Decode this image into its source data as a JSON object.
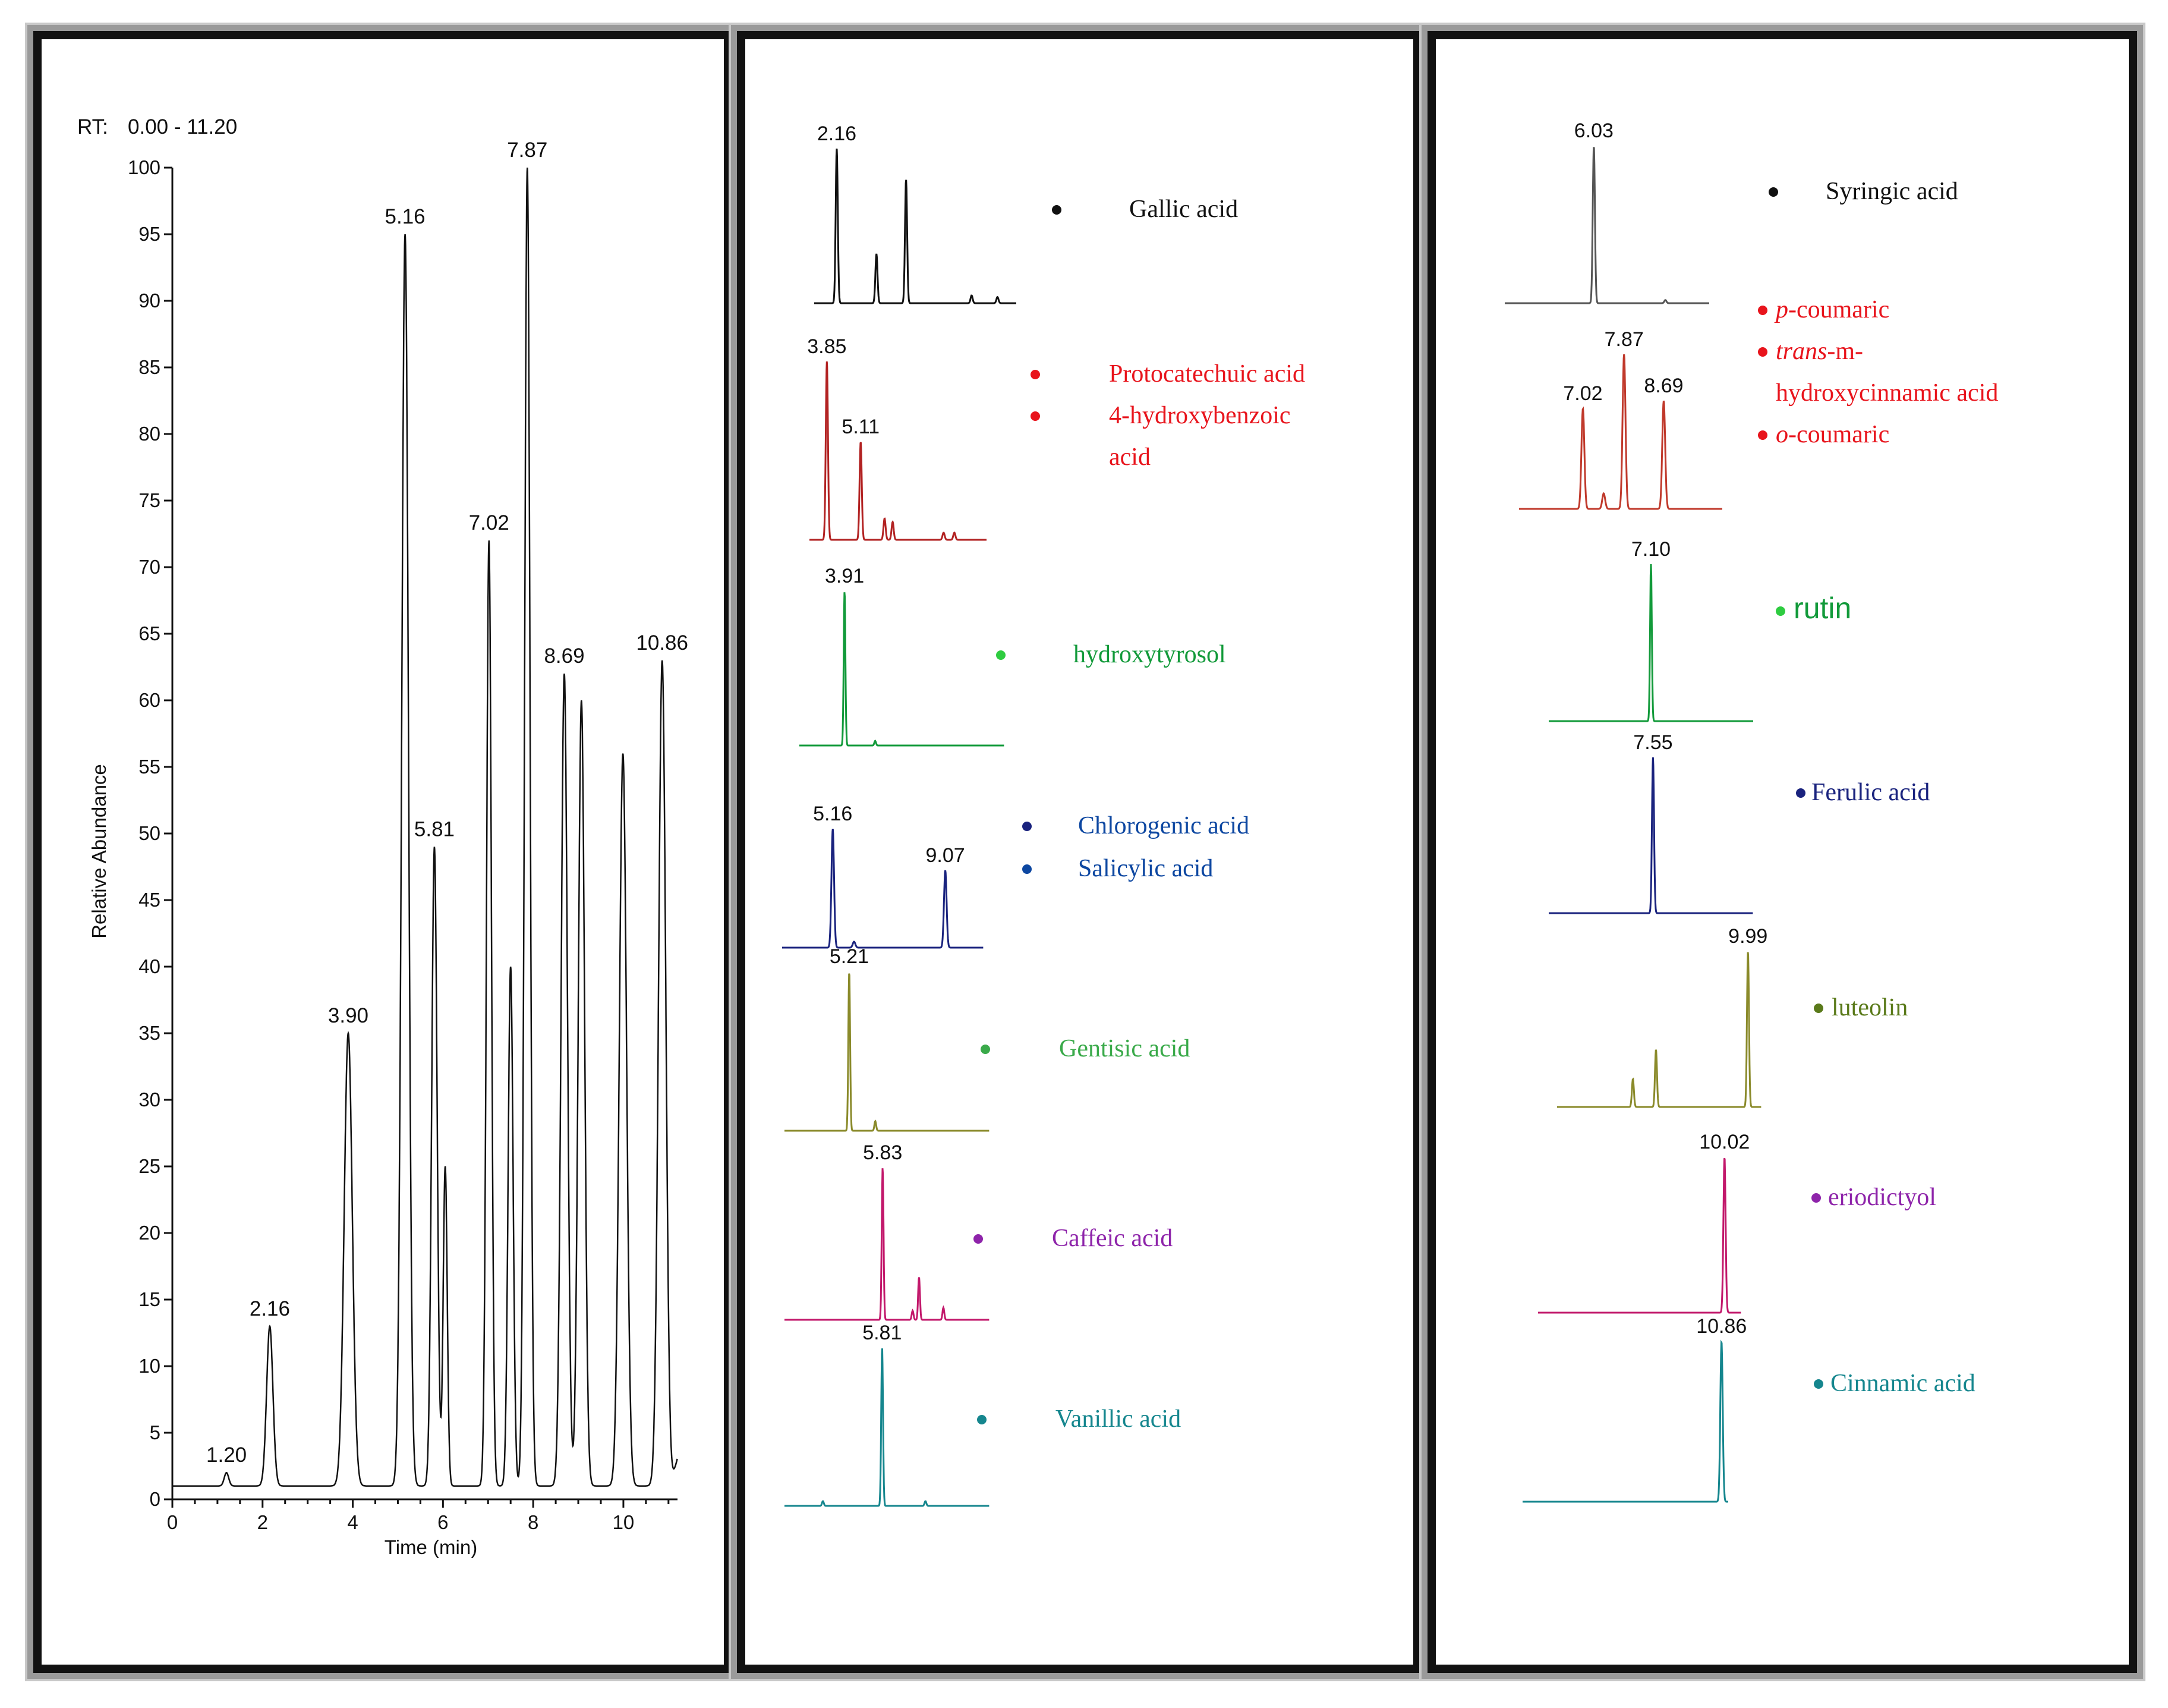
{
  "colors": {
    "black": "#111111",
    "red": "#e8141c",
    "darkred": "#b22222",
    "green": "#129a3a",
    "navy": "#1a237e",
    "blue": "#0d47a1",
    "olive": "#8a8a2a",
    "lightgreen": "#3aaa4a",
    "magenta": "#c2186b",
    "purple": "#8e24aa",
    "teal": "#15868e",
    "olivegreen": "#5a7a1a"
  },
  "chart_data": [
    {
      "type": "line",
      "title": "RT: 0.00 - 11.20",
      "rt_prefix": "RT:",
      "rt_range": "0.00 - 11.20",
      "xlabel": "Time (min)",
      "ylabel": "Relative Abundance",
      "xlim": [
        0,
        11.2
      ],
      "ylim": [
        0,
        100
      ],
      "x_ticks": [
        "0",
        "2",
        "4",
        "6",
        "8",
        "10"
      ],
      "y_ticks": [
        "0",
        "5",
        "10",
        "15",
        "20",
        "25",
        "30",
        "35",
        "40",
        "45",
        "50",
        "55",
        "60",
        "65",
        "70",
        "75",
        "80",
        "85",
        "90",
        "95",
        "100"
      ],
      "baseline": 1,
      "peaks": [
        {
          "rt": 1.2,
          "height": 2,
          "label": "1.20"
        },
        {
          "rt": 2.16,
          "height": 13,
          "label": "2.16"
        },
        {
          "rt": 3.9,
          "height": 35,
          "label": "3.90"
        },
        {
          "rt": 5.16,
          "height": 95,
          "label": "5.16"
        },
        {
          "rt": 5.81,
          "height": 49,
          "label": "5.81"
        },
        {
          "rt": 6.05,
          "height": 25,
          "label": ""
        },
        {
          "rt": 7.02,
          "height": 72,
          "label": "7.02"
        },
        {
          "rt": 7.5,
          "height": 40,
          "label": ""
        },
        {
          "rt": 7.87,
          "height": 100,
          "label": "7.87"
        },
        {
          "rt": 8.69,
          "height": 62,
          "label": "8.69"
        },
        {
          "rt": 9.07,
          "height": 60,
          "label": ""
        },
        {
          "rt": 9.99,
          "height": 56,
          "label": ""
        },
        {
          "rt": 10.86,
          "height": 63,
          "label": "10.86"
        }
      ]
    }
  ],
  "middle_panel": {
    "traces": [
      {
        "color": "#111111",
        "peaks": [
          {
            "rt": 2.16,
            "h": 1.0,
            "label": "2.16"
          },
          {
            "rt": 3.85,
            "h": 0.32,
            "label": ""
          },
          {
            "rt": 5.11,
            "h": 0.8,
            "label": ""
          },
          {
            "rt": 7.9,
            "h": 0.05,
            "label": ""
          },
          {
            "rt": 9.0,
            "h": 0.04,
            "label": ""
          }
        ]
      },
      {
        "color": "#b22222",
        "peaks": [
          {
            "rt": 3.85,
            "h": 1.0,
            "label": "3.85"
          },
          {
            "rt": 5.11,
            "h": 0.55,
            "label": "5.11"
          },
          {
            "rt": 6.0,
            "h": 0.12,
            "label": ""
          },
          {
            "rt": 6.3,
            "h": 0.1,
            "label": ""
          },
          {
            "rt": 8.2,
            "h": 0.04,
            "label": ""
          },
          {
            "rt": 8.6,
            "h": 0.04,
            "label": ""
          }
        ]
      },
      {
        "color": "#129a3a",
        "peaks": [
          {
            "rt": 3.91,
            "h": 1.0,
            "label": "3.91"
          },
          {
            "rt": 5.0,
            "h": 0.03,
            "label": ""
          }
        ]
      },
      {
        "color": "#1a237e",
        "peaks": [
          {
            "rt": 5.16,
            "h": 1.0,
            "label": "5.16"
          },
          {
            "rt": 9.07,
            "h": 0.65,
            "label": "9.07"
          },
          {
            "rt": 5.9,
            "h": 0.05,
            "label": ""
          }
        ]
      },
      {
        "color": "#8a8a2a",
        "peaks": [
          {
            "rt": 5.21,
            "h": 1.0,
            "label": "5.21"
          },
          {
            "rt": 6.1,
            "h": 0.06,
            "label": ""
          }
        ]
      },
      {
        "color": "#c2186b",
        "peaks": [
          {
            "rt": 5.83,
            "h": 1.0,
            "label": "5.83"
          },
          {
            "rt": 7.25,
            "h": 0.28,
            "label": ""
          },
          {
            "rt": 7.0,
            "h": 0.06,
            "label": ""
          },
          {
            "rt": 8.2,
            "h": 0.08,
            "label": ""
          }
        ]
      },
      {
        "color": "#15868e",
        "peaks": [
          {
            "rt": 5.81,
            "h": 1.0,
            "label": "5.81"
          },
          {
            "rt": 3.5,
            "h": 0.03,
            "label": ""
          },
          {
            "rt": 7.5,
            "h": 0.03,
            "label": ""
          }
        ]
      }
    ],
    "legends": [
      {
        "items": [
          {
            "text": "Gallic acid",
            "color": "#111111",
            "dot": "#111111"
          }
        ]
      },
      {
        "items": [
          {
            "text": "Protocatechuic acid",
            "color": "#e8141c",
            "dot": "#e8141c"
          },
          {
            "text": "4-hydroxybenzoic",
            "text2": "acid",
            "color": "#e8141c",
            "dot": "#e8141c"
          }
        ]
      },
      {
        "items": [
          {
            "text": "hydroxytyrosol",
            "color": "#129a3a",
            "dot": "#2ecc40"
          }
        ]
      },
      {
        "items": [
          {
            "text": "Chlorogenic acid",
            "color": "#0d47a1",
            "dot": "#1a237e"
          },
          {
            "text": "Salicylic acid",
            "color": "#0d47a1",
            "dot": "#0d47a1"
          }
        ]
      },
      {
        "items": [
          {
            "text": "Gentisic acid",
            "color": "#3aaa4a",
            "dot": "#3aaa4a"
          }
        ]
      },
      {
        "items": [
          {
            "text": "Caffeic acid",
            "color": "#8e24aa",
            "dot": "#8e24aa"
          }
        ]
      },
      {
        "items": [
          {
            "text": "Vanillic acid",
            "color": "#15868e",
            "dot": "#15868e"
          }
        ]
      }
    ]
  },
  "right_panel": {
    "traces": [
      {
        "color": "#555555",
        "peaks": [
          {
            "rt": 6.03,
            "h": 1.0,
            "label": "6.03"
          },
          {
            "rt": 7.5,
            "h": 0.02,
            "label": ""
          }
        ]
      },
      {
        "color": "#c0392b",
        "peaks": [
          {
            "rt": 7.02,
            "h": 0.65,
            "label": "7.02"
          },
          {
            "rt": 7.87,
            "h": 1.0,
            "label": "7.87"
          },
          {
            "rt": 8.69,
            "h": 0.7,
            "label": "8.69"
          },
          {
            "rt": 7.45,
            "h": 0.1,
            "label": ""
          }
        ]
      },
      {
        "color": "#129a3a",
        "peaks": [
          {
            "rt": 7.1,
            "h": 1.0,
            "label": "7.10"
          }
        ]
      },
      {
        "color": "#1a237e",
        "peaks": [
          {
            "rt": 7.55,
            "h": 1.0,
            "label": "7.55"
          }
        ]
      },
      {
        "color": "#8a8a2a",
        "peaks": [
          {
            "rt": 9.99,
            "h": 1.0,
            "label": "9.99"
          },
          {
            "rt": 7.2,
            "h": 0.37,
            "label": ""
          },
          {
            "rt": 6.5,
            "h": 0.18,
            "label": ""
          }
        ]
      },
      {
        "color": "#c2186b",
        "peaks": [
          {
            "rt": 10.02,
            "h": 1.0,
            "label": "10.02"
          }
        ]
      },
      {
        "color": "#15868e",
        "peaks": [
          {
            "rt": 10.86,
            "h": 1.0,
            "label": "10.86"
          }
        ]
      }
    ],
    "legends": [
      {
        "items": [
          {
            "text": "Syringic acid",
            "color": "#111111",
            "dot": "#111111",
            "font": "serif"
          }
        ]
      },
      {
        "items": [
          {
            "italic": "p",
            "text": "-coumaric",
            "color": "#e8141c",
            "dot": "#e8141c",
            "font": "serif"
          },
          {
            "italic": "trans",
            "text": "-m-",
            "color": "#e8141c",
            "dot": "#e8141c",
            "font": "serif"
          },
          {
            "text": "hydroxycinnamic acid",
            "color": "#e8141c",
            "dot": "",
            "font": "serif"
          },
          {
            "italic": "o",
            "text": "-coumaric",
            "color": "#e8141c",
            "dot": "#e8141c",
            "font": "serif"
          }
        ]
      },
      {
        "items": [
          {
            "text": "rutin",
            "color": "#129a3a",
            "dot": "#2ecc40",
            "font": "sans"
          }
        ]
      },
      {
        "items": [
          {
            "text": "Ferulic acid",
            "color": "#1a237e",
            "dot": "#1a237e",
            "font": "serif"
          }
        ]
      },
      {
        "items": [
          {
            "text": "luteolin",
            "color": "#5a7a1a",
            "dot": "#5a7a1a",
            "font": "serif"
          }
        ]
      },
      {
        "items": [
          {
            "text": "eriodictyol",
            "color": "#8e24aa",
            "dot": "#8e24aa",
            "font": "serif"
          }
        ]
      },
      {
        "items": [
          {
            "text": "Cinnamic acid",
            "color": "#15868e",
            "dot": "#15868e",
            "font": "serif"
          }
        ]
      }
    ]
  }
}
